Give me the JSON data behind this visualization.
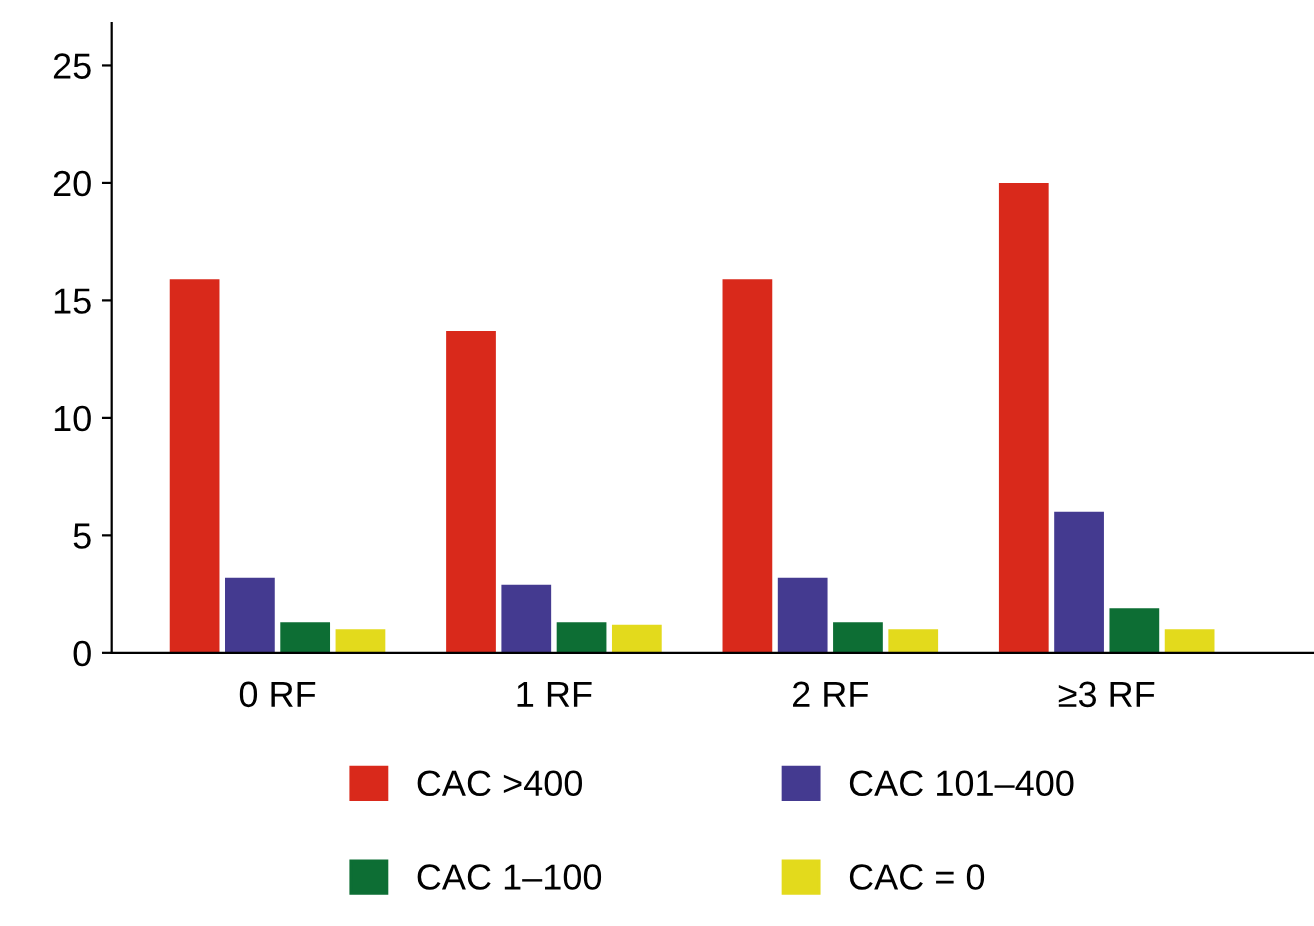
{
  "chart_data": {
    "type": "bar",
    "categories": [
      "0 RF",
      "1 RF",
      "2 RF",
      "≥3 RF"
    ],
    "series": [
      {
        "name": "CAC >400",
        "color": "#d9291b",
        "values": [
          15.9,
          13.7,
          15.9,
          20.0
        ]
      },
      {
        "name": "CAC 101–400",
        "color": "#443a90",
        "values": [
          3.2,
          2.9,
          3.2,
          6.0
        ]
      },
      {
        "name": "CAC 1–100",
        "color": "#0d6e34",
        "values": [
          1.3,
          1.3,
          1.3,
          1.9
        ]
      },
      {
        "name": "CAC = 0",
        "color": "#e3da1c",
        "values": [
          1.0,
          1.2,
          1.0,
          1.0
        ]
      }
    ],
    "ylim": [
      0,
      26.8
    ],
    "yticks": [
      0,
      5,
      10,
      15,
      20,
      25
    ],
    "grid": false,
    "legend": "bottom"
  }
}
